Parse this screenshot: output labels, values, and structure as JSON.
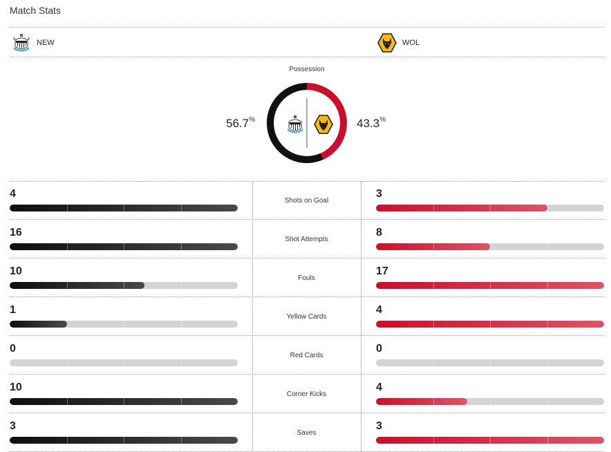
{
  "page": {
    "title": "Match Stats"
  },
  "teams": {
    "home": {
      "abbr": "NEW",
      "logo_icon": "newcastle-crest-icon",
      "color": "#111111"
    },
    "away": {
      "abbr": "WOL",
      "logo_icon": "wolves-crest-icon",
      "color": "#c8102e"
    }
  },
  "possession": {
    "label": "Possession",
    "home_value": "56.7",
    "home_unit": "%",
    "away_value": "43.3",
    "away_unit": "%",
    "home_fraction": 0.567,
    "away_fraction": 0.433
  },
  "stats": [
    {
      "label": "Shots on Goal",
      "home": "4",
      "away": "3",
      "home_fraction": 1.0,
      "away_fraction": 0.75
    },
    {
      "label": "Shot Attempts",
      "home": "16",
      "away": "8",
      "home_fraction": 1.0,
      "away_fraction": 0.5
    },
    {
      "label": "Fouls",
      "home": "10",
      "away": "17",
      "home_fraction": 0.59,
      "away_fraction": 1.0
    },
    {
      "label": "Yellow Cards",
      "home": "1",
      "away": "4",
      "home_fraction": 0.25,
      "away_fraction": 1.0
    },
    {
      "label": "Red Cards",
      "home": "0",
      "away": "0",
      "home_fraction": 0.0,
      "away_fraction": 0.0
    },
    {
      "label": "Corner Kicks",
      "home": "10",
      "away": "4",
      "home_fraction": 1.0,
      "away_fraction": 0.4
    },
    {
      "label": "Saves",
      "home": "3",
      "away": "3",
      "home_fraction": 1.0,
      "away_fraction": 1.0
    }
  ],
  "colors": {
    "home_bar": "#111111",
    "away_bar": "#c8102e",
    "track": "#d3d3d3"
  }
}
